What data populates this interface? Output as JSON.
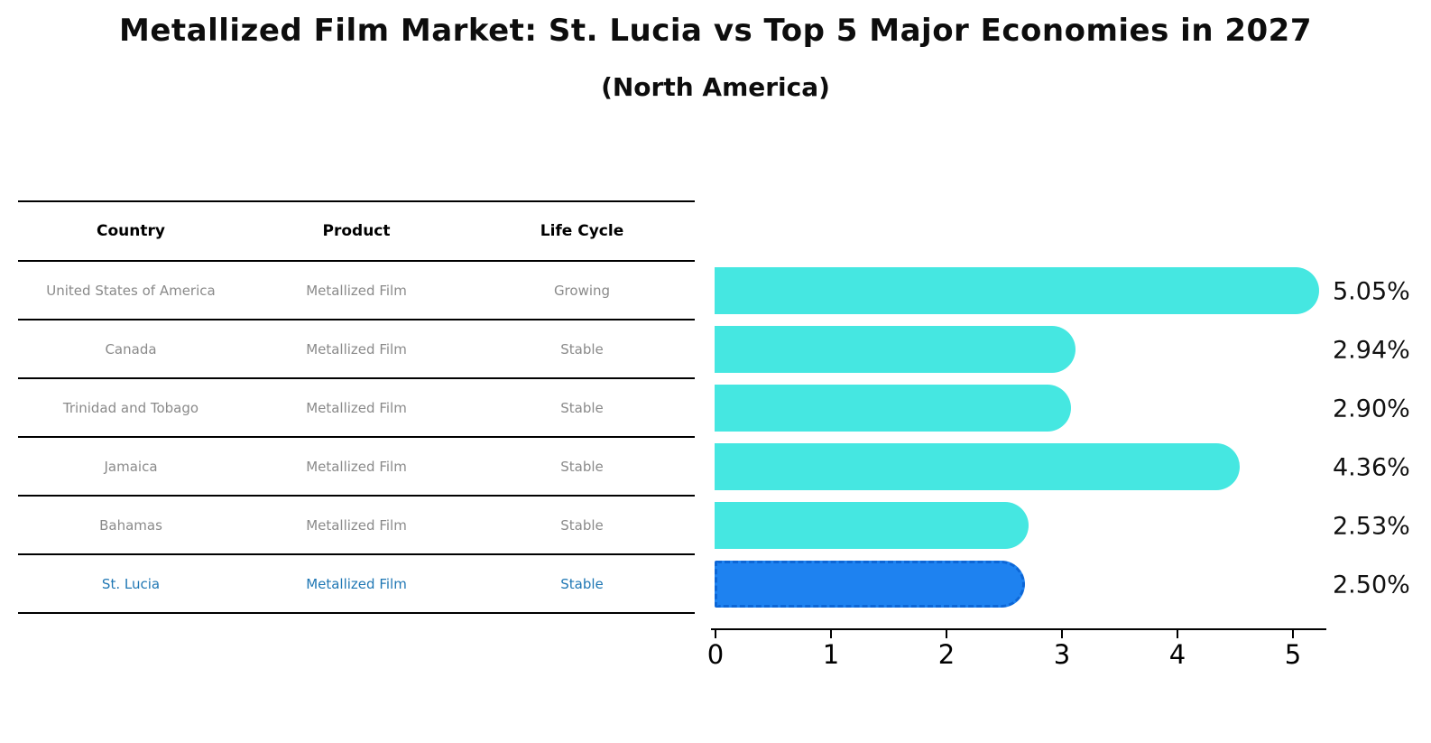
{
  "title": "Metallized Film Market: St. Lucia vs Top 5 Major Economies in 2027",
  "subtitle": "(North America)",
  "table": {
    "headers": [
      "Country",
      "Product",
      "Life Cycle"
    ],
    "rows": [
      {
        "country": "United States of America",
        "product": "Metallized Film",
        "life_cycle": "Growing",
        "highlighted": false
      },
      {
        "country": "Canada",
        "product": "Metallized Film",
        "life_cycle": "Stable",
        "highlighted": false
      },
      {
        "country": "Trinidad and Tobago",
        "product": "Metallized Film",
        "life_cycle": "Stable",
        "highlighted": false
      },
      {
        "country": "Jamaica",
        "product": "Metallized Film",
        "life_cycle": "Stable",
        "highlighted": false
      },
      {
        "country": "Bahamas",
        "product": "Metallized Film",
        "life_cycle": "Stable",
        "highlighted": false
      },
      {
        "country": "St. Lucia",
        "product": "Metallized Film",
        "life_cycle": "Stable",
        "highlighted": true
      }
    ]
  },
  "chart_data": {
    "type": "bar",
    "orientation": "horizontal",
    "title": "Metallized Film Market: St. Lucia vs Top 5 Major Economies in 2027 (North America)",
    "categories": [
      "United States of America",
      "Canada",
      "Trinidad and Tobago",
      "Jamaica",
      "Bahamas",
      "St. Lucia"
    ],
    "values": [
      5.05,
      2.94,
      2.9,
      4.36,
      2.53,
      2.5
    ],
    "value_labels": [
      "5.05%",
      "2.94%",
      "2.90%",
      "4.36%",
      "2.53%",
      "2.50%"
    ],
    "x_ticks": [
      0,
      1,
      2,
      3,
      4,
      5
    ],
    "xlim": [
      0,
      5.3
    ],
    "grid": false,
    "legend": false,
    "bar_color": "#45e7e1",
    "highlight_index": 5,
    "highlight_bar_color": "#1e82f0",
    "highlight_border_color": "#0c66d6",
    "highlight_text_color": "#1f77b4"
  }
}
